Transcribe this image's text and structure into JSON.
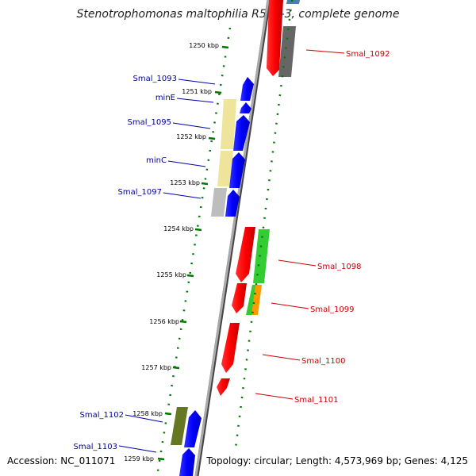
{
  "title": "Stenotrophomonas maltophilia R551-3, complete genome",
  "footer": {
    "accession": "Accession: NC_011071",
    "summary": "Topology: circular; Length: 4,573,969 bp; Genes: 4,125"
  },
  "colors": {
    "forward_label": "#0000aa",
    "reverse_label": "#cc0000",
    "tick_green": "#007700",
    "backbone": "#888888"
  },
  "ticks": [
    "1250 kbp",
    "1251 kbp",
    "1252 kbp",
    "1253 kbp",
    "1254 kbp",
    "1255 kbp",
    "1256 kbp",
    "1257 kbp",
    "1258 kbp",
    "1259 kbp"
  ],
  "genes": [
    {
      "label": "Smal_1092",
      "strand": "reverse",
      "color": "#ff0000"
    },
    {
      "label": "Smal_1093",
      "strand": "forward",
      "color": "#0000ff"
    },
    {
      "label": "minE",
      "strand": "forward",
      "color": "#0000ff"
    },
    {
      "label": "Smal_1095",
      "strand": "forward",
      "color": "#0000ff"
    },
    {
      "label": "minC",
      "strand": "forward",
      "color": "#0000ff"
    },
    {
      "label": "Smal_1097",
      "strand": "forward",
      "color": "#0000ff"
    },
    {
      "label": "Smal_1098",
      "strand": "reverse",
      "color": "#ff0000"
    },
    {
      "label": "Smal_1099",
      "strand": "reverse",
      "color": "#ff0000"
    },
    {
      "label": "Smal_1100",
      "strand": "reverse",
      "color": "#ff0000"
    },
    {
      "label": "Smal_1101",
      "strand": "reverse",
      "color": "#ff0000"
    },
    {
      "label": "Smal_1102",
      "strand": "forward",
      "color": "#0000ff"
    },
    {
      "label": "Smal_1103",
      "strand": "forward",
      "color": "#0000ff"
    }
  ]
}
